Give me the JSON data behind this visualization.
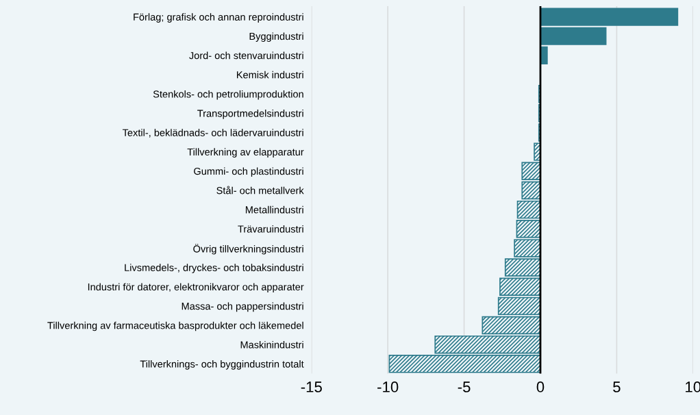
{
  "chart_data": {
    "type": "bar",
    "orientation": "horizontal",
    "categories": [
      "Förlag; grafisk och annan reproindustri",
      "Byggindustri",
      "Jord- och stenvaruindustri",
      "Kemisk industri",
      "Stenkols- och petroliumproduktion",
      "Transportmedelsindustri",
      "Textil-, beklädnads- och lädervaruindustri",
      "Tillverkning av elapparatur",
      "Gummi- och plastindustri",
      "Stål- och metallverk",
      "Metallindustri",
      "Trävaruindustri",
      "Övrig tillverkningsindustri",
      "Livsmedels-, dryckes- och tobaksindustri",
      "Industri för datorer, elektronikvaror och apparater",
      "Massa- och pappersindustri",
      "Tillverkning av farmaceutiska basprodukter och läkemedel",
      "Maskinindustri",
      "Tillverknings- och byggindustrin totalt"
    ],
    "values": [
      9.0,
      4.3,
      0.45,
      null,
      -0.1,
      -0.1,
      -0.1,
      -0.4,
      -1.2,
      -1.2,
      -1.5,
      -1.55,
      -1.7,
      -2.3,
      -2.65,
      -2.75,
      -3.8,
      -6.9,
      -9.9
    ],
    "color": "#2e7b8c",
    "xlim": [
      -15,
      10
    ],
    "xticks": [
      -15,
      -10,
      -5,
      0,
      5,
      10
    ],
    "grid": "x",
    "legend": false,
    "ref_lines": [
      {
        "axis": "x",
        "value": 0,
        "color": "#000000"
      }
    ]
  }
}
